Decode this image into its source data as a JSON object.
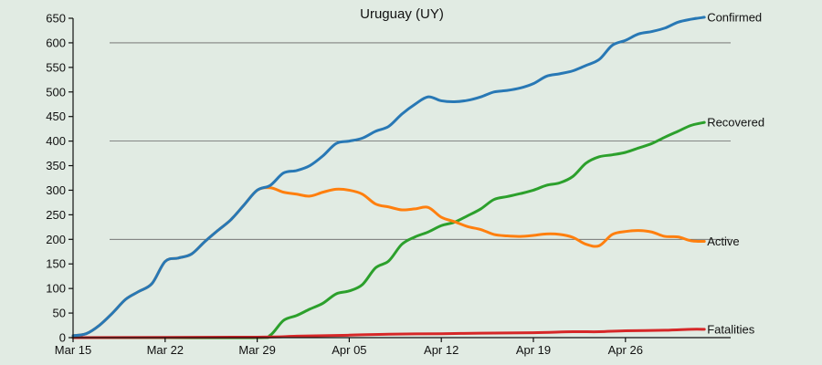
{
  "chart_data": {
    "type": "line",
    "title": "Uruguay (UY)",
    "xlabel": "",
    "ylabel": "",
    "x_range": [
      "2020-03-15",
      "2020-05-04"
    ],
    "ylim": [
      0,
      650
    ],
    "y_ticks": [
      0,
      50,
      100,
      150,
      200,
      250,
      300,
      350,
      400,
      450,
      500,
      550,
      600,
      650
    ],
    "x_ticks": [
      {
        "date": "2020-03-15",
        "label": "Mar 15"
      },
      {
        "date": "2020-03-22",
        "label": "Mar 22"
      },
      {
        "date": "2020-03-29",
        "label": "Mar 29"
      },
      {
        "date": "2020-04-05",
        "label": "Apr 05"
      },
      {
        "date": "2020-04-12",
        "label": "Apr 12"
      },
      {
        "date": "2020-04-19",
        "label": "Apr 19"
      },
      {
        "date": "2020-04-26",
        "label": "Apr 26"
      }
    ],
    "gridlines_y": [
      200,
      400,
      600
    ],
    "series": [
      {
        "name": "Confirmed",
        "color": "#2878b5",
        "points": [
          [
            "2020-03-15",
            4
          ],
          [
            "2020-03-16",
            8
          ],
          [
            "2020-03-17",
            25
          ],
          [
            "2020-03-18",
            50
          ],
          [
            "2020-03-19",
            78
          ],
          [
            "2020-03-20",
            94
          ],
          [
            "2020-03-21",
            110
          ],
          [
            "2020-03-22",
            155
          ],
          [
            "2020-03-23",
            162
          ],
          [
            "2020-03-24",
            170
          ],
          [
            "2020-03-25",
            195
          ],
          [
            "2020-03-26",
            218
          ],
          [
            "2020-03-27",
            240
          ],
          [
            "2020-03-28",
            270
          ],
          [
            "2020-03-29",
            300
          ],
          [
            "2020-03-30",
            310
          ],
          [
            "2020-03-31",
            335
          ],
          [
            "2020-04-01",
            340
          ],
          [
            "2020-04-02",
            350
          ],
          [
            "2020-04-03",
            370
          ],
          [
            "2020-04-04",
            395
          ],
          [
            "2020-04-05",
            400
          ],
          [
            "2020-04-06",
            406
          ],
          [
            "2020-04-07",
            420
          ],
          [
            "2020-04-08",
            430
          ],
          [
            "2020-04-09",
            455
          ],
          [
            "2020-04-10",
            475
          ],
          [
            "2020-04-11",
            490
          ],
          [
            "2020-04-12",
            482
          ],
          [
            "2020-04-13",
            480
          ],
          [
            "2020-04-14",
            483
          ],
          [
            "2020-04-15",
            490
          ],
          [
            "2020-04-16",
            500
          ],
          [
            "2020-04-17",
            503
          ],
          [
            "2020-04-18",
            508
          ],
          [
            "2020-04-19",
            517
          ],
          [
            "2020-04-20",
            532
          ],
          [
            "2020-04-21",
            537
          ],
          [
            "2020-04-22",
            543
          ],
          [
            "2020-04-23",
            554
          ],
          [
            "2020-04-24",
            566
          ],
          [
            "2020-04-25",
            595
          ],
          [
            "2020-04-26",
            605
          ],
          [
            "2020-04-27",
            618
          ],
          [
            "2020-04-28",
            623
          ],
          [
            "2020-04-29",
            630
          ],
          [
            "2020-04-30",
            642
          ],
          [
            "2020-05-01",
            648
          ],
          [
            "2020-05-02",
            652
          ]
        ]
      },
      {
        "name": "Recovered",
        "color": "#2ca02c",
        "points": [
          [
            "2020-03-15",
            0
          ],
          [
            "2020-03-22",
            0
          ],
          [
            "2020-03-29",
            0
          ],
          [
            "2020-03-30",
            5
          ],
          [
            "2020-03-31",
            35
          ],
          [
            "2020-04-01",
            45
          ],
          [
            "2020-04-02",
            58
          ],
          [
            "2020-04-03",
            70
          ],
          [
            "2020-04-04",
            89
          ],
          [
            "2020-04-05",
            95
          ],
          [
            "2020-04-06",
            108
          ],
          [
            "2020-04-07",
            142
          ],
          [
            "2020-04-08",
            156
          ],
          [
            "2020-04-09",
            190
          ],
          [
            "2020-04-10",
            205
          ],
          [
            "2020-04-11",
            215
          ],
          [
            "2020-04-12",
            228
          ],
          [
            "2020-04-13",
            235
          ],
          [
            "2020-04-14",
            248
          ],
          [
            "2020-04-15",
            262
          ],
          [
            "2020-04-16",
            281
          ],
          [
            "2020-04-17",
            287
          ],
          [
            "2020-04-18",
            293
          ],
          [
            "2020-04-19",
            300
          ],
          [
            "2020-04-20",
            310
          ],
          [
            "2020-04-21",
            315
          ],
          [
            "2020-04-22",
            328
          ],
          [
            "2020-04-23",
            355
          ],
          [
            "2020-04-24",
            368
          ],
          [
            "2020-04-25",
            372
          ],
          [
            "2020-04-26",
            377
          ],
          [
            "2020-04-27",
            386
          ],
          [
            "2020-04-28",
            395
          ],
          [
            "2020-04-29",
            408
          ],
          [
            "2020-04-30",
            420
          ],
          [
            "2020-05-01",
            432
          ],
          [
            "2020-05-02",
            438
          ]
        ]
      },
      {
        "name": "Active",
        "color": "#ff7f0e",
        "points": [
          [
            "2020-03-15",
            4
          ],
          [
            "2020-03-16",
            8
          ],
          [
            "2020-03-17",
            25
          ],
          [
            "2020-03-18",
            50
          ],
          [
            "2020-03-19",
            78
          ],
          [
            "2020-03-20",
            94
          ],
          [
            "2020-03-21",
            110
          ],
          [
            "2020-03-22",
            155
          ],
          [
            "2020-03-23",
            162
          ],
          [
            "2020-03-24",
            170
          ],
          [
            "2020-03-25",
            195
          ],
          [
            "2020-03-26",
            218
          ],
          [
            "2020-03-27",
            240
          ],
          [
            "2020-03-28",
            270
          ],
          [
            "2020-03-29",
            300
          ],
          [
            "2020-03-30",
            305
          ],
          [
            "2020-03-31",
            296
          ],
          [
            "2020-04-01",
            292
          ],
          [
            "2020-04-02",
            288
          ],
          [
            "2020-04-03",
            296
          ],
          [
            "2020-04-04",
            302
          ],
          [
            "2020-04-05",
            300
          ],
          [
            "2020-04-06",
            292
          ],
          [
            "2020-04-07",
            272
          ],
          [
            "2020-04-08",
            266
          ],
          [
            "2020-04-09",
            260
          ],
          [
            "2020-04-10",
            262
          ],
          [
            "2020-04-11",
            265
          ],
          [
            "2020-04-12",
            245
          ],
          [
            "2020-04-13",
            236
          ],
          [
            "2020-04-14",
            226
          ],
          [
            "2020-04-15",
            220
          ],
          [
            "2020-04-16",
            210
          ],
          [
            "2020-04-17",
            207
          ],
          [
            "2020-04-18",
            206
          ],
          [
            "2020-04-19",
            208
          ],
          [
            "2020-04-20",
            211
          ],
          [
            "2020-04-21",
            210
          ],
          [
            "2020-04-22",
            204
          ],
          [
            "2020-04-23",
            190
          ],
          [
            "2020-04-24",
            187
          ],
          [
            "2020-04-25",
            210
          ],
          [
            "2020-04-26",
            216
          ],
          [
            "2020-04-27",
            218
          ],
          [
            "2020-04-28",
            215
          ],
          [
            "2020-04-29",
            206
          ],
          [
            "2020-04-30",
            205
          ],
          [
            "2020-05-01",
            197
          ],
          [
            "2020-05-02",
            196
          ]
        ]
      },
      {
        "name": "Fatalities",
        "color": "#d62728",
        "points": [
          [
            "2020-03-15",
            0
          ],
          [
            "2020-03-29",
            1
          ],
          [
            "2020-04-01",
            3
          ],
          [
            "2020-04-05",
            5
          ],
          [
            "2020-04-08",
            7
          ],
          [
            "2020-04-12",
            8
          ],
          [
            "2020-04-15",
            9
          ],
          [
            "2020-04-19",
            10
          ],
          [
            "2020-04-22",
            12
          ],
          [
            "2020-04-24",
            12
          ],
          [
            "2020-04-26",
            14
          ],
          [
            "2020-04-29",
            15
          ],
          [
            "2020-05-01",
            17
          ],
          [
            "2020-05-02",
            17
          ]
        ]
      }
    ]
  }
}
